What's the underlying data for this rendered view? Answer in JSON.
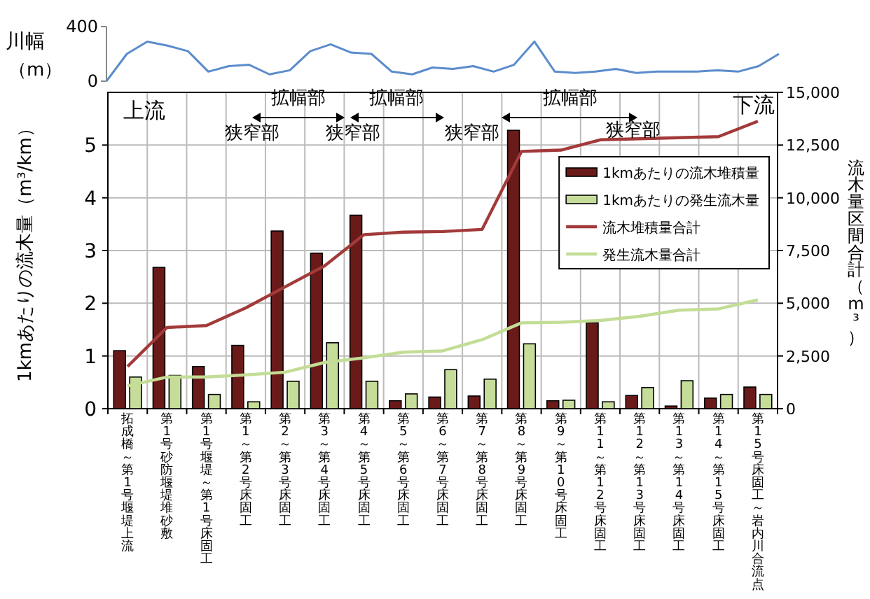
{
  "chart_data": [
    {
      "type": "line",
      "ylabel": "川幅（m）",
      "categories": [
        null,
        null,
        null,
        null,
        null,
        null,
        null,
        null,
        null,
        null,
        null,
        null,
        null,
        null,
        null,
        null,
        null,
        null,
        null,
        null,
        null,
        null,
        null,
        null,
        null,
        null,
        null,
        null,
        null,
        null,
        null,
        null,
        null,
        null
      ],
      "series": [
        {
          "color": "#5b8ccc",
          "values": [
            0,
            200,
            290,
            260,
            220,
            70,
            110,
            120,
            50,
            80,
            220,
            270,
            210,
            200,
            70,
            50,
            100,
            90,
            110,
            70,
            120,
            290,
            70,
            60,
            70,
            90,
            60,
            70,
            70,
            70,
            80,
            70,
            110,
            200
          ]
        }
      ],
      "ylim": [
        0,
        400
      ],
      "yticks": [
        0,
        400
      ],
      "grid": false,
      "tick_labels": "y"
    },
    {
      "type": "bar",
      "ylabel": "1kmあたりの流木量（m³/km）",
      "y2label": "流木量区間合計（m³）",
      "categories": [
        "拓成橋～第1号堰堤上流",
        "第1号砂防堰堤堆砂敷",
        "第1号堰堤～第1号床固工",
        "第1～第2号床固工",
        "第2～第3号床固工",
        "第3～第4号床固工",
        "第4～第5号床固工",
        "第5～第6号床固工",
        "第6～第7号床固工",
        "第7～第8号床固工",
        "第8～第9号床固工",
        "第9～第10号床固工",
        "第11～第12号床固工",
        "第12～第13号床固工",
        "第13～第14号床固工",
        "第14～第15号床固工",
        "第15号床固工～岩内川合流点"
      ],
      "series": [
        {
          "name": "1kmあたりの流木堆積量",
          "type": "bar",
          "color": "#6b1a1a",
          "values": [
            1.1,
            2.68,
            0.8,
            1.2,
            3.37,
            2.95,
            3.67,
            0.15,
            0.22,
            0.24,
            5.28,
            0.15,
            1.63,
            0.25,
            0.05,
            0.2,
            0.41
          ]
        },
        {
          "name": "1kmあたりの発生流木量",
          "type": "bar",
          "color": "#c6dd9a",
          "values": [
            0.6,
            0.63,
            0.27,
            0.13,
            0.52,
            1.25,
            0.52,
            0.28,
            0.74,
            0.56,
            1.23,
            0.16,
            0.13,
            0.4,
            0.53,
            0.27,
            0.27
          ]
        },
        {
          "name": "流木堆積量合計",
          "type": "line",
          "axis": "y2",
          "color": "#a33a3a",
          "values": [
            2000,
            3850,
            3940,
            4780,
            5780,
            6770,
            8250,
            8370,
            8400,
            8500,
            12200,
            12260,
            12750,
            12800,
            12850,
            12900,
            13630
          ]
        },
        {
          "name": "発生流木量合計",
          "type": "line",
          "axis": "y2",
          "color": "#c3dd96",
          "values": [
            1080,
            1500,
            1500,
            1600,
            1730,
            2190,
            2410,
            2680,
            2740,
            3270,
            4070,
            4100,
            4180,
            4380,
            4670,
            4730,
            5160
          ]
        }
      ],
      "ylim": [
        0,
        6
      ],
      "yticks": [
        0,
        1,
        2,
        3,
        4,
        5
      ],
      "y2lim": [
        0,
        15000
      ],
      "y2ticks": [
        0,
        {
          "value": 2500,
          "label": "2,500"
        },
        {
          "value": 5000,
          "label": "5,000"
        },
        {
          "value": 7500,
          "label": "7,500"
        },
        {
          "value": 10000,
          "label": "10,000"
        },
        {
          "value": 12500,
          "label": "12,500"
        },
        {
          "value": 15000,
          "label": "15,000"
        }
      ],
      "grid": true,
      "legend": "top right",
      "annotations": [
        "上流",
        "下流",
        "拡幅部",
        "拡幅部",
        "拡幅部",
        "狭窄部",
        "狭窄部",
        "狭窄部",
        "狭窄部"
      ]
    }
  ]
}
